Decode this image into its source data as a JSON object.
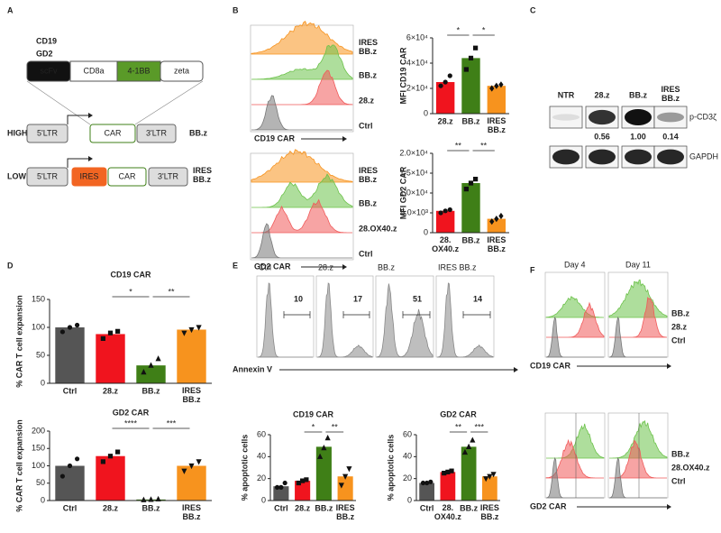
{
  "figure": {
    "panel_labels": [
      "A",
      "B",
      "C",
      "D",
      "E",
      "F"
    ],
    "panel_a": {
      "construct_names": [
        "CD19",
        "GD2"
      ],
      "domains": [
        "scFv",
        "CD8a",
        "4-1BB",
        "zeta"
      ],
      "high": {
        "level": "HIGH",
        "elements": [
          "5'LTR",
          "CAR",
          "3'LTR"
        ],
        "name": "BB.z"
      },
      "low": {
        "level": "LOW",
        "elements": [
          "5'LTR",
          "IRES",
          "CAR",
          "3'LTR"
        ],
        "name": "IRES\nBB.z"
      }
    },
    "panel_b": [
      {
        "labels": [
          "IRES\nBB.z",
          "BB.z",
          "28.z",
          "Ctrl"
        ],
        "axis": "CD19 CAR"
      },
      {
        "labels": [
          "IRES\nBB.z",
          "BB.z",
          "28.OX40.z",
          "Ctrl"
        ],
        "axis": "GD2 CAR"
      }
    ],
    "panel_c": {
      "lanes": [
        "NTR",
        "28.z",
        "BB.z",
        "IRES\nBB.z"
      ],
      "rows": [
        "p-CD3ζ",
        "GAPDH"
      ],
      "quantification": [
        "0.56",
        "1.00",
        "0.14"
      ]
    },
    "panel_e": {
      "samples": [
        "Ctrl",
        "28.z",
        "BB.z",
        "IRES BB.z"
      ],
      "percent": [
        10,
        17,
        51,
        14
      ],
      "axis": "Annexin V"
    },
    "panel_f": {
      "days": [
        "Day 4",
        "Day 11"
      ],
      "blocks": [
        {
          "labels": [
            "BB.z",
            "28.z",
            "Ctrl"
          ],
          "axis": "CD19 CAR"
        },
        {
          "labels": [
            "BB.z",
            "28.OX40.z",
            "Ctrl"
          ],
          "axis": "GD2 CAR"
        }
      ]
    }
  },
  "chart_data": [
    {
      "type": "bar",
      "y_label": "MFI CD19 CAR",
      "categories": [
        "28.z",
        "BB.z",
        "IRES\nBB.z"
      ],
      "colors": [
        "#f0141e",
        "#3f7f17",
        "#f7931e"
      ],
      "values": [
        25000,
        44000,
        22000
      ],
      "points": [
        [
          22000,
          25000,
          30000
        ],
        [
          35000,
          44000,
          52000
        ],
        [
          20000,
          22000,
          23000
        ]
      ],
      "markers": [
        "circle",
        "square",
        "diamond"
      ],
      "ylim": [
        0,
        60000
      ],
      "yticks": [
        0,
        {
          "value": 20000,
          "label": "2×10⁴"
        },
        {
          "value": 40000,
          "label": "4×10⁴"
        },
        {
          "value": 60000,
          "label": "6×10⁴"
        }
      ],
      "significance": [
        {
          "label": "*",
          "pair": [
            "28.z",
            "BB.z"
          ]
        },
        {
          "label": "*",
          "pair": [
            "BB.z",
            "IRES\nBB.z"
          ]
        }
      ]
    },
    {
      "type": "bar",
      "y_label": "MFI GD2 CAR",
      "categories": [
        "28.\nOX40.z",
        "BB.z",
        "IRES\nBB.z"
      ],
      "colors": [
        "#f0141e",
        "#3f7f17",
        "#f7931e"
      ],
      "values": [
        5500,
        12500,
        3500
      ],
      "points": [
        [
          5000,
          5500,
          5800
        ],
        [
          11000,
          12500,
          13500
        ],
        [
          2800,
          3500,
          4200
        ]
      ],
      "markers": [
        "circle",
        "square",
        "diamond"
      ],
      "ylim": [
        0,
        20000
      ],
      "yticks": [
        0,
        {
          "value": 5000,
          "label": "5.0×10³"
        },
        {
          "value": 10000,
          "label": "1.0×10⁴"
        },
        {
          "value": 15000,
          "label": "1.5×10⁴"
        },
        {
          "value": 20000,
          "label": "2.0×10⁴"
        }
      ],
      "significance": [
        {
          "label": "**",
          "pair": [
            "28.\nOX40.z",
            "BB.z"
          ]
        },
        {
          "label": "**",
          "pair": [
            "BB.z",
            "IRES\nBB.z"
          ]
        }
      ]
    },
    {
      "type": "bar",
      "title": "CD19 CAR",
      "y_label": "% CAR T cell expansion",
      "categories": [
        "Ctrl",
        "28.z",
        "BB.z",
        "IRES\nBB.z"
      ],
      "colors": [
        "#555555",
        "#f0141e",
        "#3f7f17",
        "#f7931e"
      ],
      "values": [
        100,
        88,
        32,
        96
      ],
      "points": [
        [
          92,
          100,
          104
        ],
        [
          80,
          90,
          93
        ],
        [
          20,
          32,
          44
        ],
        [
          90,
          96,
          100
        ]
      ],
      "markers": [
        "circle",
        "square",
        "triangle",
        "triangle-down"
      ],
      "ylim": [
        0,
        150
      ],
      "yticks": [
        0,
        50,
        100,
        150
      ],
      "significance": [
        {
          "label": "*",
          "pair": [
            "28.z",
            "BB.z"
          ]
        },
        {
          "label": "**",
          "pair": [
            "BB.z",
            "IRES\nBB.z"
          ]
        }
      ]
    },
    {
      "type": "bar",
      "title": "GD2 CAR",
      "y_label": "% CAR T cell expansion",
      "categories": [
        "Ctrl",
        "28.z",
        "BB.z",
        "IRES\nBB.z"
      ],
      "colors": [
        "#555555",
        "#f0141e",
        "#3f7f17",
        "#f7931e"
      ],
      "values": [
        100,
        128,
        3,
        100
      ],
      "points": [
        [
          70,
          100,
          120
        ],
        [
          112,
          128,
          140
        ],
        [
          2,
          3,
          4
        ],
        [
          85,
          100,
          112
        ]
      ],
      "markers": [
        "circle",
        "square",
        "triangle",
        "triangle-down"
      ],
      "ylim": [
        0,
        200
      ],
      "yticks": [
        0,
        50,
        100,
        150,
        200
      ],
      "significance": [
        {
          "label": "****",
          "pair": [
            "28.z",
            "BB.z"
          ]
        },
        {
          "label": "***",
          "pair": [
            "BB.z",
            "IRES\nBB.z"
          ]
        }
      ]
    },
    {
      "type": "bar",
      "title": "CD19 CAR",
      "y_label": "% apoptotic cells",
      "categories": [
        "Ctrl",
        "28.z",
        "BB.z",
        "IRES\nBB.z"
      ],
      "colors": [
        "#555555",
        "#f0141e",
        "#3f7f17",
        "#f7931e"
      ],
      "values": [
        13,
        18,
        49,
        22
      ],
      "points": [
        [
          12,
          12,
          16
        ],
        [
          16,
          18,
          19
        ],
        [
          40,
          48,
          57
        ],
        [
          14,
          22,
          29
        ]
      ],
      "markers": [
        "circle",
        "square",
        "triangle",
        "triangle-down"
      ],
      "ylim": [
        0,
        60
      ],
      "yticks": [
        0,
        20,
        40,
        60
      ],
      "significance": [
        {
          "label": "*",
          "pair": [
            "28.z",
            "BB.z"
          ]
        },
        {
          "label": "**",
          "pair": [
            "BB.z",
            "IRES\nBB.z"
          ]
        }
      ]
    },
    {
      "type": "bar",
      "title": "GD2 CAR",
      "y_label": "% apoptotic cells",
      "categories": [
        "Ctrl",
        "28.\nOX40.z",
        "BB.z",
        "IRES\nBB.z"
      ],
      "colors": [
        "#555555",
        "#f0141e",
        "#3f7f17",
        "#f7931e"
      ],
      "values": [
        16,
        26,
        49,
        22
      ],
      "points": [
        [
          16,
          16,
          17
        ],
        [
          25,
          26,
          27
        ],
        [
          44,
          49,
          55
        ],
        [
          20,
          22,
          24
        ]
      ],
      "markers": [
        "circle",
        "square",
        "triangle",
        "triangle-down"
      ],
      "ylim": [
        0,
        60
      ],
      "yticks": [
        0,
        20,
        40,
        60
      ],
      "significance": [
        {
          "label": "**",
          "pair": [
            "28.\nOX40.z",
            "BB.z"
          ]
        },
        {
          "label": "***",
          "pair": [
            "BB.z",
            "IRES\nBB.z"
          ]
        }
      ]
    }
  ]
}
